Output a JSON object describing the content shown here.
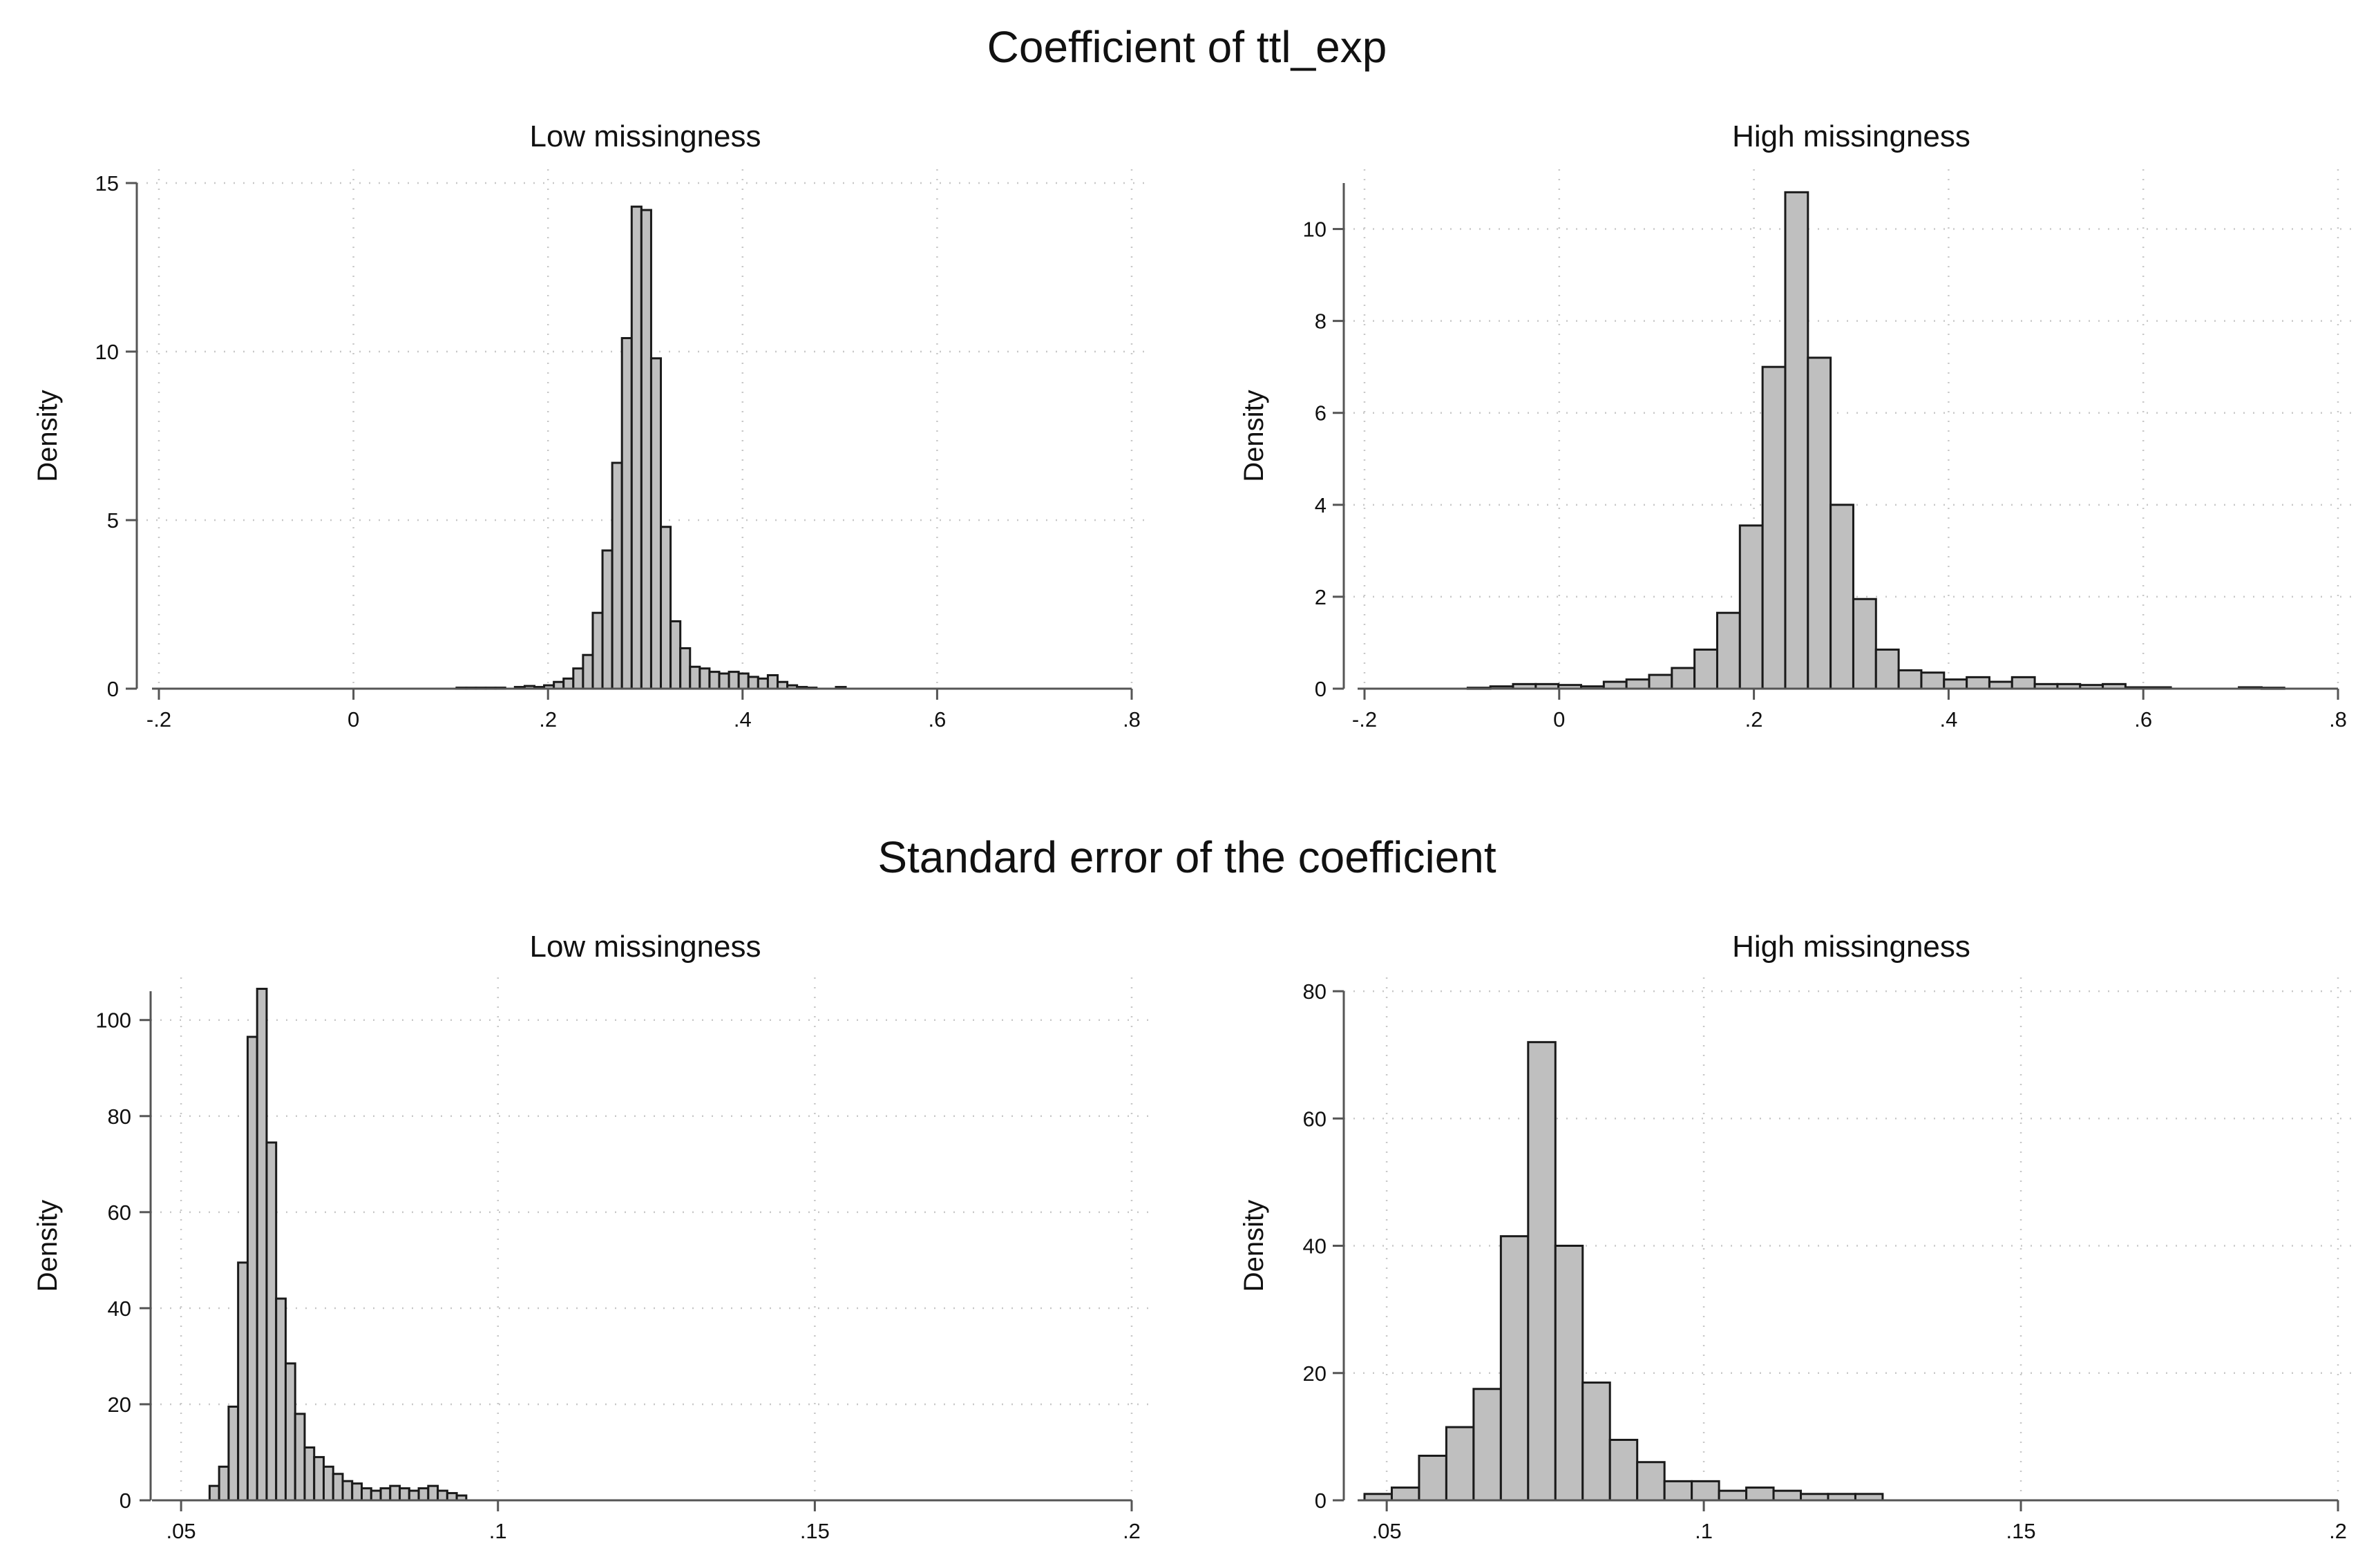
{
  "figure": {
    "row_titles": [
      "Coefficient of ttl_exp",
      "Standard error of the coefficient"
    ],
    "colors": {
      "bar_fill": "#bfbfbf",
      "bar_stroke": "#1a1a1a",
      "axis": "#555555",
      "grid": "#c8c8c8"
    }
  },
  "chart_data": [
    {
      "type": "bar",
      "title": "Low missingness",
      "ylabel": "Density",
      "xlim": [
        -0.2,
        0.8
      ],
      "ylim": [
        0,
        15
      ],
      "xticks": [
        -0.2,
        0,
        0.2,
        0.4,
        0.6,
        0.8
      ],
      "xtick_labels": [
        "-.2",
        "0",
        ".2",
        ".4",
        ".6",
        ".8"
      ],
      "yticks": [
        0,
        5,
        10,
        15
      ],
      "ytick_labels": [
        "0",
        "5",
        "10",
        "15"
      ],
      "grid": true,
      "bin_start": 0.106,
      "bin_width": 0.01,
      "values": [
        0.03,
        0.03,
        0.03,
        0.03,
        0.03,
        0,
        0.05,
        0.08,
        0.05,
        0.1,
        0.2,
        0.3,
        0.6,
        1.0,
        2.25,
        4.1,
        6.7,
        10.4,
        14.3,
        14.2,
        9.8,
        4.8,
        2.0,
        1.2,
        0.65,
        0.6,
        0.5,
        0.45,
        0.5,
        0.45,
        0.35,
        0.3,
        0.4,
        0.2,
        0.1,
        0.05,
        0.03,
        0,
        0,
        0.05
      ]
    },
    {
      "type": "bar",
      "title": "High missingness",
      "ylabel": "Density",
      "xlim": [
        -0.2,
        0.8
      ],
      "ylim": [
        0,
        11
      ],
      "xticks": [
        -0.2,
        0,
        0.2,
        0.4,
        0.6,
        0.8
      ],
      "xtick_labels": [
        "-.2",
        "0",
        ".2",
        ".4",
        ".6",
        ".8"
      ],
      "yticks": [
        0,
        2,
        4,
        6,
        8,
        10
      ],
      "ytick_labels": [
        "0",
        "2",
        "4",
        "6",
        "8",
        "10"
      ],
      "grid": true,
      "bin_start": -0.094,
      "bin_width": 0.0233,
      "values": [
        0.02,
        0.05,
        0.1,
        0.1,
        0.08,
        0.05,
        0.15,
        0.2,
        0.3,
        0.45,
        0.85,
        1.65,
        3.55,
        7.0,
        10.8,
        7.2,
        4.0,
        1.95,
        0.85,
        0.4,
        0.35,
        0.2,
        0.25,
        0.15,
        0.25,
        0.1,
        0.1,
        0.08,
        0.1,
        0.03,
        0.03,
        0,
        0,
        0,
        0.03,
        0.02
      ]
    },
    {
      "type": "bar",
      "title": "Low missingness",
      "ylabel": "Density",
      "xlim": [
        0.0465,
        0.2
      ],
      "ylim": [
        0,
        106
      ],
      "xticks": [
        0.05,
        0.1,
        0.15,
        0.2
      ],
      "xtick_labels": [
        ".05",
        ".1",
        ".15",
        ".2"
      ],
      "yticks": [
        0,
        20,
        40,
        60,
        80,
        100
      ],
      "ytick_labels": [
        "0",
        "20",
        "40",
        "60",
        "80",
        "100"
      ],
      "grid": true,
      "bin_start": 0.0545,
      "bin_width": 0.0015,
      "values": [
        3,
        7,
        19.5,
        49.5,
        96.5,
        106.5,
        74.5,
        42,
        28.5,
        18,
        11,
        9,
        7,
        5.5,
        4,
        3.5,
        2.5,
        2,
        2.5,
        3,
        2.5,
        2,
        2.5,
        3,
        2,
        1.5,
        1
      ]
    },
    {
      "type": "bar",
      "title": "High missingness",
      "ylabel": "Density",
      "xlim": [
        0.0465,
        0.2
      ],
      "ylim": [
        0,
        80
      ],
      "xticks": [
        0.05,
        0.1,
        0.15,
        0.2
      ],
      "xtick_labels": [
        ".05",
        ".1",
        ".15",
        ".2"
      ],
      "yticks": [
        0,
        20,
        40,
        60,
        80
      ],
      "ytick_labels": [
        "0",
        "20",
        "40",
        "60",
        "80"
      ],
      "grid": true,
      "bin_start": 0.0465,
      "bin_width": 0.0043,
      "values": [
        1,
        2,
        7,
        11.5,
        17.5,
        41.5,
        72,
        40,
        18.5,
        9.5,
        6,
        3,
        3,
        1.5,
        2,
        1.5,
        1,
        1,
        1
      ]
    }
  ]
}
